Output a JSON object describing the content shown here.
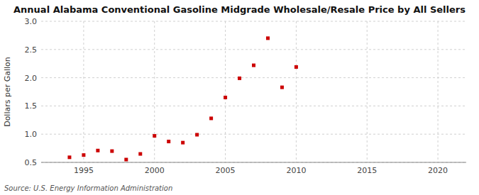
{
  "chart_data": {
    "type": "scatter",
    "title": "Annual Alabama Conventional Gasoline Midgrade Wholesale/Resale Price by All Sellers",
    "ylabel": "Dollars per Gallon",
    "source": "Source: U.S. Energy Information Administration",
    "x": [
      1994,
      1995,
      1996,
      1997,
      1998,
      1999,
      2000,
      2001,
      2002,
      2003,
      2004,
      2005,
      2006,
      2007,
      2008,
      2009,
      2010
    ],
    "values": [
      0.59,
      0.63,
      0.71,
      0.7,
      0.55,
      0.65,
      0.97,
      0.87,
      0.85,
      0.99,
      1.28,
      1.65,
      1.99,
      2.22,
      2.7,
      1.83,
      2.19
    ],
    "color": "#cc0000",
    "marker": "square",
    "xlim": [
      1992,
      2022
    ],
    "ylim": [
      0.5,
      3.0
    ],
    "xticks": [
      1995,
      2000,
      2005,
      2010,
      2015,
      2020
    ],
    "yticks": [
      0.5,
      {
        "value": 1.0,
        "label": "1.0"
      },
      1.5,
      {
        "value": 2.0,
        "label": "2.0"
      },
      2.5,
      {
        "value": 3.0,
        "label": "3.0"
      }
    ],
    "grid": true
  }
}
